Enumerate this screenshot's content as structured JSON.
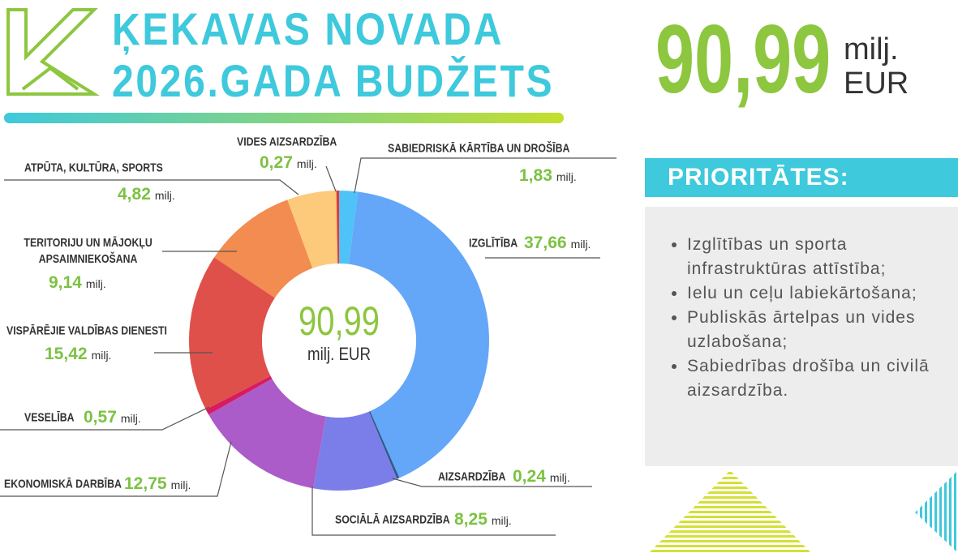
{
  "header": {
    "title_lines": [
      "ĶEKAVAS NOVADA",
      "2026.GADA BUDŽETS"
    ]
  },
  "total": {
    "value": 90.99,
    "label": "90,99",
    "unit": "milj.",
    "currency": "EUR"
  },
  "chart_data": {
    "type": "donut",
    "categories": [
      "SABIEDRISKĀ KĀRTĪBA UN DROŠĪBA",
      "IZGLĪTĪBA",
      "AIZSARDZĪBA",
      "SOCIĀLĀ AIZSARDZĪBA",
      "EKONOMISKĀ DARBĪBA",
      "VESELĪBA",
      "VISPĀRĒJIE VALDĪBAS DIENESTI",
      "TERITORIJU UN MĀJOKĻU APSAIMNIEKOŠANA",
      "ATPŪTA, KULTŪRA, SPORTS",
      "VIDES AIZSARDZĪBA"
    ],
    "values": [
      1.83,
      37.66,
      0.24,
      8.25,
      12.75,
      0.57,
      15.42,
      9.14,
      4.82,
      0.27
    ],
    "value_labels": [
      "1,83",
      "37,66",
      "0,24",
      "8,25",
      "12,75",
      "0,57",
      "15,42",
      "9,14",
      "4,82",
      "0,27"
    ],
    "unit": "milj.",
    "colors": [
      "#4fc3f7",
      "#64a6f8",
      "#2c5a8a",
      "#7b7ee8",
      "#ab5cc9",
      "#d81b60",
      "#e0504a",
      "#f28c50",
      "#fdc97a",
      "#e53935"
    ],
    "center_label": "90,99",
    "center_unit": "milj. EUR"
  },
  "priorities": {
    "title": "PRIORITĀTES:",
    "items": [
      "Izglītības un sporta infrastruktūras attīstība;",
      "Ielu un ceļu labiekārtošana;",
      "Publiskās ārtelpas un vides uzlabošana;",
      "Sabiedrības drošība un civilā aizsardzība."
    ]
  }
}
